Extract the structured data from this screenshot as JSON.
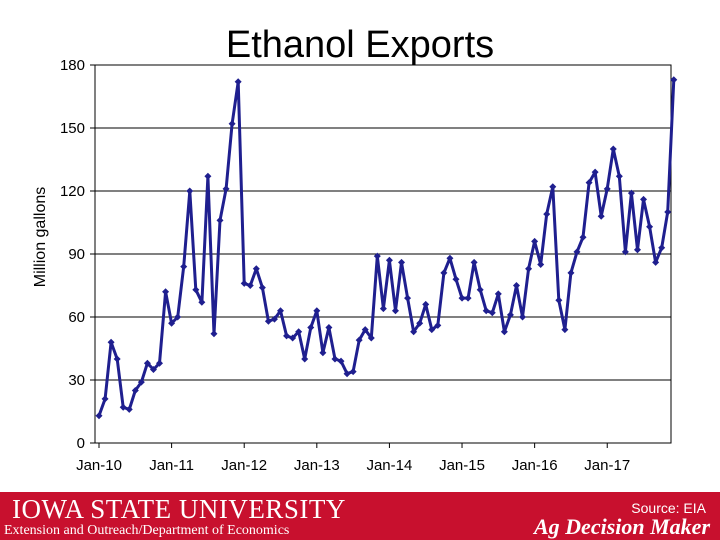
{
  "title": "Ethanol Exports",
  "footer": {
    "university": "IOWA STATE UNIVERSITY",
    "department": "Extension and Outreach/Department of Economics",
    "source": "Source: EIA",
    "brand": "Ag Decision Maker"
  },
  "chart_data": {
    "type": "line",
    "title": "Ethanol Exports",
    "ylabel": "Million gallons",
    "xlabel": "",
    "ylim": [
      0,
      180
    ],
    "yticks": [
      0,
      30,
      60,
      90,
      120,
      150,
      180
    ],
    "xticks": [
      "Jan-10",
      "Jan-11",
      "Jan-12",
      "Jan-13",
      "Jan-14",
      "Jan-15",
      "Jan-16",
      "Jan-17"
    ],
    "grid": "horizontal",
    "color": "#1f1f8f",
    "series": [
      {
        "values": [
          13,
          21,
          48,
          40,
          17,
          16,
          25,
          29,
          38,
          35,
          38,
          72,
          57,
          60,
          84,
          120,
          73,
          67,
          127,
          52,
          106,
          121,
          152,
          172,
          76,
          75,
          83,
          74,
          58,
          59,
          63,
          51,
          50,
          53,
          40,
          55,
          63,
          43,
          55,
          40,
          39,
          33,
          34,
          49,
          54,
          50,
          89,
          64,
          87,
          63,
          86,
          69,
          53,
          57,
          66,
          54,
          56,
          81,
          88,
          78,
          69,
          69,
          86,
          73,
          63,
          62,
          71,
          53,
          61,
          75,
          60,
          83,
          96,
          85,
          109,
          122,
          68,
          54,
          81,
          91,
          98,
          124,
          129,
          108,
          121,
          140,
          127,
          91,
          119,
          92,
          116,
          103,
          86,
          93,
          110,
          173
        ]
      }
    ]
  }
}
